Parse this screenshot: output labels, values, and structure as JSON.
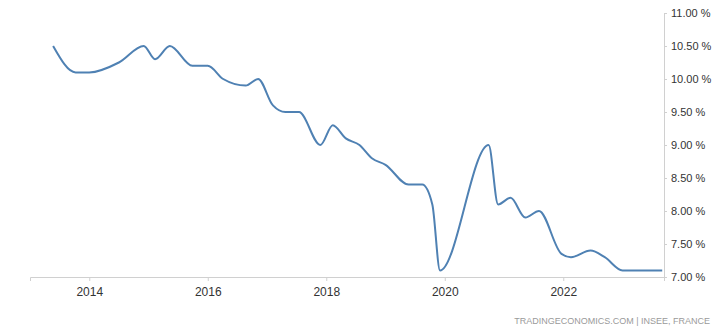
{
  "chart_data": {
    "type": "line",
    "source": "TRADINGECONOMICS.COM | INSEE, FRANCE",
    "x": [
      2013.39,
      2013.77,
      2014.0,
      2014.5,
      2014.92,
      2015.11,
      2015.36,
      2015.74,
      2016.0,
      2016.26,
      2016.64,
      2016.85,
      2017.1,
      2017.31,
      2017.54,
      2017.9,
      2018.11,
      2018.33,
      2018.56,
      2018.77,
      2019.0,
      2019.39,
      2019.62,
      2019.79,
      2019.92,
      2020.74,
      2020.9,
      2021.11,
      2021.36,
      2021.59,
      2021.97,
      2022.13,
      2022.46,
      2022.7,
      2023.0,
      2023.67
    ],
    "values": [
      10.5,
      10.1,
      10.1,
      10.25,
      10.5,
      10.3,
      10.5,
      10.2,
      10.2,
      10.0,
      9.9,
      10.0,
      9.6,
      9.5,
      9.5,
      9.0,
      9.3,
      9.1,
      9.0,
      8.8,
      8.7,
      8.4,
      8.4,
      8.1,
      7.1,
      9.0,
      8.1,
      8.2,
      7.9,
      8.0,
      7.35,
      7.3,
      7.4,
      7.3,
      7.1,
      7.1
    ],
    "color": "#4f81b3",
    "xlim": [
      2013.0,
      2023.7
    ],
    "xticks": [
      2014,
      2016,
      2018,
      2020,
      2022
    ],
    "ylim": [
      7.0,
      11.0
    ],
    "yticks": [
      {
        "value": 7.0,
        "label": "7.00 %"
      },
      {
        "value": 7.5,
        "label": "7.50 %"
      },
      {
        "value": 8.0,
        "label": "8.00 %"
      },
      {
        "value": 8.5,
        "label": "8.50 %"
      },
      {
        "value": 9.0,
        "label": "9.00 %"
      },
      {
        "value": 9.5,
        "label": "9.50 %"
      },
      {
        "value": 10.0,
        "label": "10.00 %"
      },
      {
        "value": 10.5,
        "label": "10.50 %"
      },
      {
        "value": 11.0,
        "label": "11.00 %"
      }
    ],
    "grid": false
  }
}
